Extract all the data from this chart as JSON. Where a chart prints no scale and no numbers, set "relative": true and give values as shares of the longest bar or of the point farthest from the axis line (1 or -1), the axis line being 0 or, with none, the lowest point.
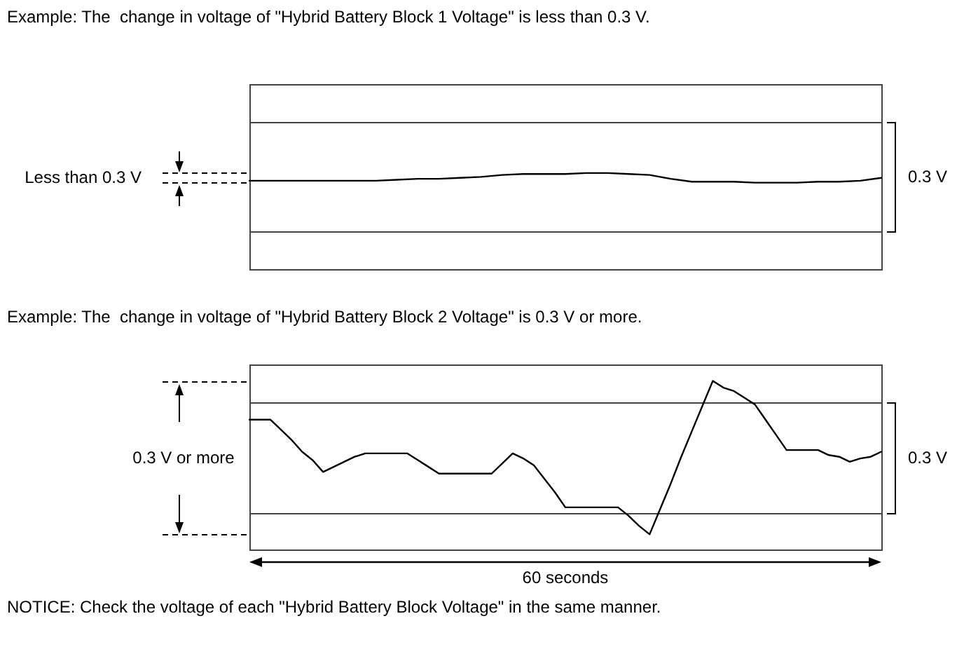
{
  "chart_data": [
    {
      "type": "line",
      "title": "Example: The  change in voltage of \"Hybrid Battery Block 1 Voltage\" is less than 0.3 V.",
      "relative": true,
      "categories": [
        null,
        null,
        null,
        null,
        null,
        null,
        null,
        null,
        null,
        null,
        null,
        null,
        null,
        null,
        null,
        null,
        null,
        null,
        null,
        null,
        null,
        null,
        null,
        null,
        null,
        null,
        null,
        null,
        null,
        null,
        null
      ],
      "values": [
        0.92,
        0.92,
        0.92,
        0.92,
        0.92,
        0.92,
        0.92,
        0.93,
        0.94,
        0.94,
        0.95,
        0.96,
        0.98,
        0.99,
        0.99,
        0.99,
        1,
        1,
        0.99,
        0.98,
        0.94,
        0.91,
        0.91,
        0.91,
        0.9,
        0.9,
        0.9,
        0.91,
        0.91,
        0.92,
        0.95
      ],
      "color": "#000000",
      "ref_lines": [
        {
          "axis": "y",
          "value": 0.4,
          "color": "#444444"
        },
        {
          "axis": "y",
          "value": 1.53,
          "color": "#444444"
        }
      ],
      "annotations": [
        "Less than 0.3 V",
        "0.3 V"
      ]
    },
    {
      "type": "line",
      "title": "Example: The  change in voltage of \"Hybrid Battery Block 2 Voltage\" is 0.3 V or more.",
      "xlabel": "60 seconds",
      "relative": true,
      "categories": [
        null,
        null,
        null,
        null,
        null,
        null,
        null,
        null,
        null,
        null,
        null,
        null,
        null,
        null,
        null,
        null,
        null,
        null,
        null,
        null,
        null,
        null,
        null,
        null,
        null,
        null,
        null,
        null,
        null,
        null,
        null,
        null,
        null,
        null,
        null,
        null,
        null,
        null,
        null,
        null,
        null,
        null,
        null,
        null,
        null,
        null,
        null,
        null,
        null,
        null,
        null,
        null,
        null,
        null,
        null,
        null,
        null,
        null,
        null,
        null,
        null
      ],
      "values": [
        0.77,
        0.77,
        0.77,
        0.71,
        0.65,
        0.58,
        0.53,
        0.46,
        0.49,
        0.52,
        0.55,
        0.57,
        0.57,
        0.57,
        0.57,
        0.57,
        0.53,
        0.49,
        0.45,
        0.45,
        0.45,
        0.45,
        0.45,
        0.45,
        0.51,
        0.57,
        0.54,
        0.5,
        0.42,
        0.34,
        0.25,
        0.25,
        0.25,
        0.25,
        0.25,
        0.25,
        0.2,
        0.14,
        0.09,
        0.24,
        0.39,
        0.55,
        0.7,
        0.85,
        1,
        0.96,
        0.94,
        0.9,
        0.86,
        0.77,
        0.68,
        0.59,
        0.59,
        0.59,
        0.59,
        0.56,
        0.55,
        0.52,
        0.54,
        0.55,
        0.58
      ],
      "color": "#000000",
      "ref_lines": [
        {
          "axis": "y",
          "value": 0.22,
          "color": "#444444"
        },
        {
          "axis": "y",
          "value": 0.87,
          "color": "#444444"
        }
      ],
      "annotations": [
        "0.3 V or more",
        "0.3 V",
        "NOTICE: Check the voltage of each \"Hybrid Battery Block Voltage\" in the same manner."
      ]
    }
  ]
}
